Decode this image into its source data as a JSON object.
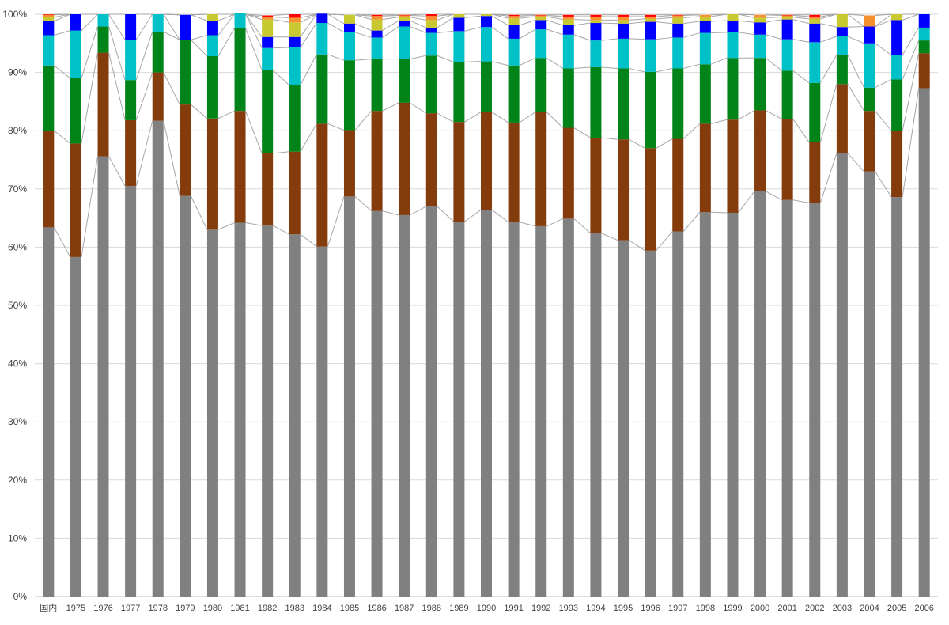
{
  "chart_data": {
    "type": "bar",
    "stacked": true,
    "normalized_percent": true,
    "title": "",
    "xlabel": "",
    "ylabel": "",
    "ylim": [
      0,
      100
    ],
    "y_ticks": [
      "0%",
      "10%",
      "20%",
      "30%",
      "40%",
      "50%",
      "60%",
      "70%",
      "80%",
      "90%",
      "100%"
    ],
    "grid": "horizontal",
    "legend": "none",
    "series_lines": true,
    "categories": [
      "国内",
      "1975",
      "1976",
      "1977",
      "1978",
      "1979",
      "1980",
      "1981",
      "1982",
      "1983",
      "1984",
      "1985",
      "1986",
      "1987",
      "1988",
      "1989",
      "1990",
      "1991",
      "1992",
      "1993",
      "1994",
      "1995",
      "1996",
      "1997",
      "1998",
      "1999",
      "2000",
      "2001",
      "2002",
      "2003",
      "2004",
      "2005",
      "2006"
    ],
    "series": [
      {
        "color": "#808080",
        "values": [
          63.4,
          58.3,
          75.6,
          70.5,
          81.7,
          68.8,
          63.0,
          64.2,
          63.7,
          62.2,
          60.1,
          68.7,
          66.2,
          65.5,
          67.0,
          64.4,
          66.4,
          64.3,
          63.6,
          64.9,
          62.4,
          61.2,
          59.4,
          62.7,
          66.0,
          65.9,
          69.6,
          68.1,
          67.6,
          76.1,
          73.0,
          68.6,
          87.3
        ]
      },
      {
        "color": "#843C0C",
        "values": [
          16.6,
          19.5,
          17.8,
          11.3,
          8.3,
          15.7,
          19.1,
          19.2,
          12.4,
          14.2,
          21.1,
          11.4,
          17.2,
          19.3,
          16.0,
          17.1,
          16.8,
          17.1,
          19.6,
          15.6,
          16.4,
          17.3,
          17.6,
          15.9,
          15.2,
          16.0,
          13.9,
          13.9,
          10.4,
          11.9,
          10.4,
          11.4,
          6.0
        ]
      },
      {
        "color": "#00841A",
        "values": [
          11.2,
          11.2,
          4.5,
          6.9,
          7.0,
          11.1,
          10.7,
          14.2,
          14.3,
          11.4,
          11.9,
          12.0,
          8.9,
          7.5,
          9.9,
          10.3,
          8.7,
          9.8,
          9.3,
          10.2,
          12.1,
          12.2,
          13.1,
          12.1,
          10.2,
          10.6,
          9.0,
          8.3,
          10.2,
          5.0,
          4.0,
          8.8,
          2.2
        ]
      },
      {
        "color": "#00C0C8",
        "values": [
          5.2,
          8.2,
          2.1,
          6.9,
          3.0,
          0.0,
          3.6,
          2.6,
          3.8,
          6.5,
          5.4,
          4.8,
          3.7,
          5.6,
          3.9,
          5.3,
          5.9,
          4.6,
          4.9,
          5.8,
          4.6,
          5.1,
          5.6,
          5.3,
          5.4,
          4.4,
          4.0,
          5.4,
          7.0,
          3.2,
          7.6,
          4.2,
          2.2
        ]
      },
      {
        "color": "#0000FF",
        "values": [
          2.4,
          2.8,
          0.0,
          4.4,
          0.0,
          4.3,
          2.5,
          0.0,
          1.9,
          1.8,
          1.6,
          1.5,
          1.2,
          1.0,
          0.9,
          2.3,
          1.9,
          2.3,
          1.6,
          1.6,
          3.0,
          2.6,
          3.0,
          2.4,
          2.0,
          2.0,
          2.1,
          3.4,
          3.2,
          1.6,
          2.9,
          6.0,
          2.3
        ]
      },
      {
        "color": "#C8C830",
        "values": [
          0.7,
          0.0,
          0.0,
          0.0,
          0.0,
          0.0,
          1.1,
          0.0,
          3.0,
          2.5,
          0.0,
          1.5,
          1.9,
          0.6,
          1.3,
          0.6,
          0.3,
          1.2,
          0.6,
          1.0,
          0.5,
          0.6,
          0.5,
          1.0,
          0.8,
          1.1,
          0.8,
          0.4,
          0.8,
          2.2,
          0.0,
          1.0,
          0.0
        ]
      },
      {
        "color": "#F59030",
        "values": [
          0.4,
          0.0,
          0.0,
          0.0,
          0.0,
          0.0,
          0.0,
          0.0,
          0.4,
          0.8,
          0.0,
          0.0,
          0.6,
          0.3,
          0.7,
          0.0,
          0.0,
          0.4,
          0.2,
          0.5,
          0.6,
          0.6,
          0.4,
          0.4,
          0.3,
          0.0,
          0.5,
          0.3,
          0.4,
          0.0,
          1.9,
          0.0,
          0.0
        ]
      },
      {
        "color": "#FF0000",
        "values": [
          0.1,
          0.0,
          0.0,
          0.0,
          0.0,
          0.0,
          0.0,
          0.0,
          0.3,
          0.6,
          0.0,
          0.0,
          0.2,
          0.1,
          0.3,
          0.0,
          0.0,
          0.2,
          0.1,
          0.3,
          0.3,
          0.3,
          0.3,
          0.1,
          0.0,
          0.0,
          0.0,
          0.1,
          0.3,
          0.0,
          0.0,
          0.0,
          0.0
        ]
      }
    ]
  }
}
